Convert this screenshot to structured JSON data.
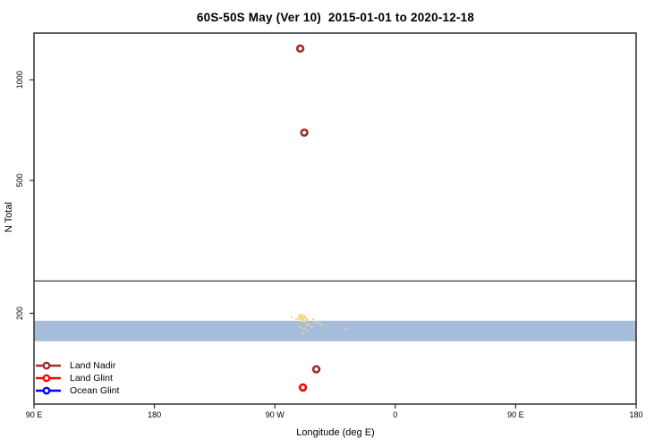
{
  "title": "60S-50S May (Ver 10)  2015-01-01 to 2020-12-18",
  "chart_data": {
    "type": "scatter",
    "title": "60S-50S May (Ver 10)  2015-01-01 to 2020-12-18",
    "xlabel": "Longitude (deg E)",
    "ylabel": "N Total",
    "x_axis": {
      "scale": "linear",
      "xlim_deg_e": [
        90,
        540
      ],
      "ticks": [
        {
          "value": 90,
          "label": "90 E"
        },
        {
          "value": 180,
          "label": "180"
        },
        {
          "value": 270,
          "label": "90 W"
        },
        {
          "value": 360,
          "label": "0"
        },
        {
          "value": 450,
          "label": "90 E"
        },
        {
          "value": 540,
          "label": "180"
        }
      ]
    },
    "y_axis": {
      "scale": "log",
      "ylim": [
        107,
        1380
      ],
      "ticks": [
        {
          "value": 200,
          "label": "200"
        },
        {
          "value": 500,
          "label": "500"
        },
        {
          "value": 1000,
          "label": "1000"
        }
      ]
    },
    "grid": false,
    "reference_line": {
      "n": 250,
      "color": "#4d4d4d"
    },
    "series": [
      {
        "name": "Land Nadir",
        "color": "#A52A2A",
        "marker": "open-circle",
        "points": [
          {
            "lon": 289,
            "n": 1240
          },
          {
            "lon": 292,
            "n": 695
          },
          {
            "lon": 301,
            "n": 136
          }
        ]
      },
      {
        "name": "Land Glint",
        "color": "#FF0000",
        "marker": "open-circle",
        "points": [
          {
            "lon": 291,
            "n": 120
          }
        ]
      },
      {
        "name": "Ocean Glint",
        "color": "#0000FF",
        "marker": "open-circle",
        "points": [],
        "band": {
          "lon_range": [
            90,
            540
          ],
          "n_min": 165,
          "n_max": 190,
          "render_color": "#A7BDDC"
        }
      }
    ],
    "unlabeled_yellow_points": {
      "color": "#F9D77E",
      "points": [
        [
          289.3,
          196,
          5
        ],
        [
          291.9,
          195,
          4
        ],
        [
          293.9,
          192,
          3
        ],
        [
          290.6,
          191,
          4
        ],
        [
          287.9,
          193,
          3
        ],
        [
          292.6,
          189,
          2
        ],
        [
          295.3,
          186,
          2
        ],
        [
          297.3,
          183,
          2
        ],
        [
          288.6,
          182,
          2
        ],
        [
          291.9,
          180,
          2
        ],
        [
          294.6,
          177,
          2
        ],
        [
          300.0,
          189,
          2
        ],
        [
          302.6,
          187,
          2
        ],
        [
          298.6,
          192,
          2
        ],
        [
          285.9,
          192,
          2
        ],
        [
          282.6,
          195,
          2
        ],
        [
          304.6,
          185,
          2
        ],
        [
          323.4,
          180,
          2
        ],
        [
          290.6,
          174,
          2
        ],
        [
          293.9,
          184,
          2
        ]
      ]
    }
  },
  "legend": {
    "items": [
      {
        "label": "Land Nadir",
        "color": "#A52A2A"
      },
      {
        "label": "Land Glint",
        "color": "#FF0000"
      },
      {
        "label": "Ocean Glint",
        "color": "#0000FF"
      }
    ]
  },
  "style_colors": {
    "plot_border": "#2e2e2e",
    "tick_text": "#000000",
    "background": "#ffffff"
  }
}
